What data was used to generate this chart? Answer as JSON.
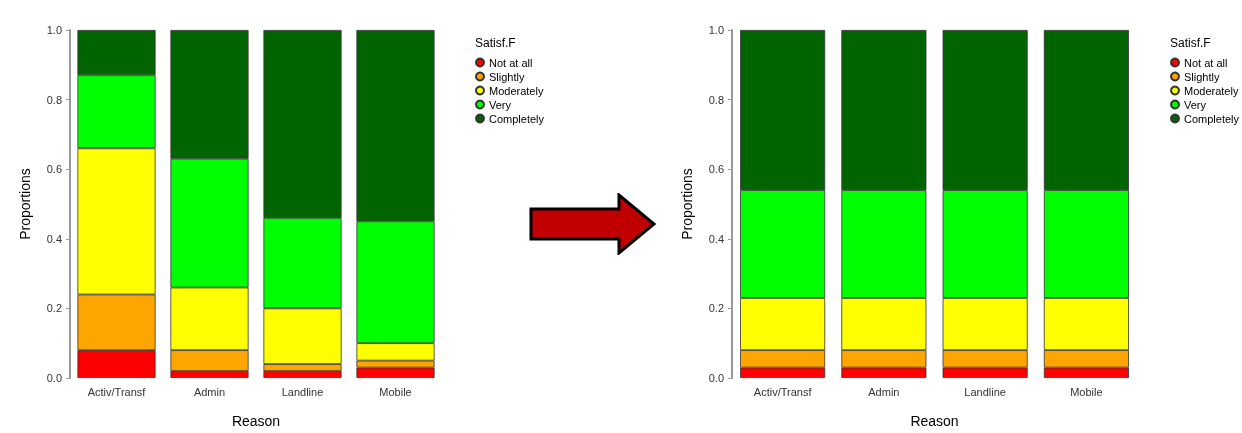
{
  "chart_data": [
    {
      "type": "bar",
      "stacked": true,
      "categories": [
        "Activ/Transf",
        "Admin",
        "Landline",
        "Mobile"
      ],
      "xlabel": "Reason",
      "ylabel": "Proportions",
      "legend_title": "Satisf.F",
      "legend": "top right",
      "grid": false,
      "ylim": [
        0,
        1
      ],
      "yticks": [
        {
          "value": 0,
          "label": "0.0"
        },
        {
          "value": 0.2,
          "label": "0.2"
        },
        {
          "value": 0.4,
          "label": "0.4"
        },
        {
          "value": 0.6,
          "label": "0.6"
        },
        {
          "value": 0.8,
          "label": "0.8"
        },
        {
          "value": 1,
          "label": "1.0"
        }
      ],
      "series": [
        {
          "name": "Not at all",
          "color": "#ff0000",
          "values": [
            0.08,
            0.02,
            0.02,
            0.03
          ]
        },
        {
          "name": "Slightly",
          "color": "#ffa500",
          "values": [
            0.16,
            0.06,
            0.02,
            0.02
          ]
        },
        {
          "name": "Moderately",
          "color": "#ffff00",
          "values": [
            0.42,
            0.18,
            0.16,
            0.05
          ]
        },
        {
          "name": "Very",
          "color": "#00ff00",
          "values": [
            0.21,
            0.37,
            0.26,
            0.35
          ]
        },
        {
          "name": "Completely",
          "color": "#006400",
          "values": [
            0.13,
            0.37,
            0.54,
            0.55
          ]
        }
      ]
    },
    {
      "type": "bar",
      "stacked": true,
      "categories": [
        "Activ/Transf",
        "Admin",
        "Landline",
        "Mobile"
      ],
      "xlabel": "Reason",
      "ylabel": "Proportions",
      "legend_title": "Satisf.F",
      "legend": "top right",
      "grid": false,
      "ylim": [
        0,
        1
      ],
      "yticks": [
        {
          "value": 0,
          "label": "0.0"
        },
        {
          "value": 0.2,
          "label": "0.2"
        },
        {
          "value": 0.4,
          "label": "0.4"
        },
        {
          "value": 0.6,
          "label": "0.6"
        },
        {
          "value": 0.8,
          "label": "0.8"
        },
        {
          "value": 1,
          "label": "1.0"
        }
      ],
      "series": [
        {
          "name": "Not at all",
          "color": "#ff0000",
          "values": [
            0.03,
            0.03,
            0.03,
            0.03
          ]
        },
        {
          "name": "Slightly",
          "color": "#ffa500",
          "values": [
            0.05,
            0.05,
            0.05,
            0.05
          ]
        },
        {
          "name": "Moderately",
          "color": "#ffff00",
          "values": [
            0.15,
            0.15,
            0.15,
            0.15
          ]
        },
        {
          "name": "Very",
          "color": "#00ff00",
          "values": [
            0.31,
            0.31,
            0.31,
            0.31
          ]
        },
        {
          "name": "Completely",
          "color": "#006400",
          "values": [
            0.46,
            0.46,
            0.46,
            0.46
          ]
        }
      ]
    }
  ]
}
